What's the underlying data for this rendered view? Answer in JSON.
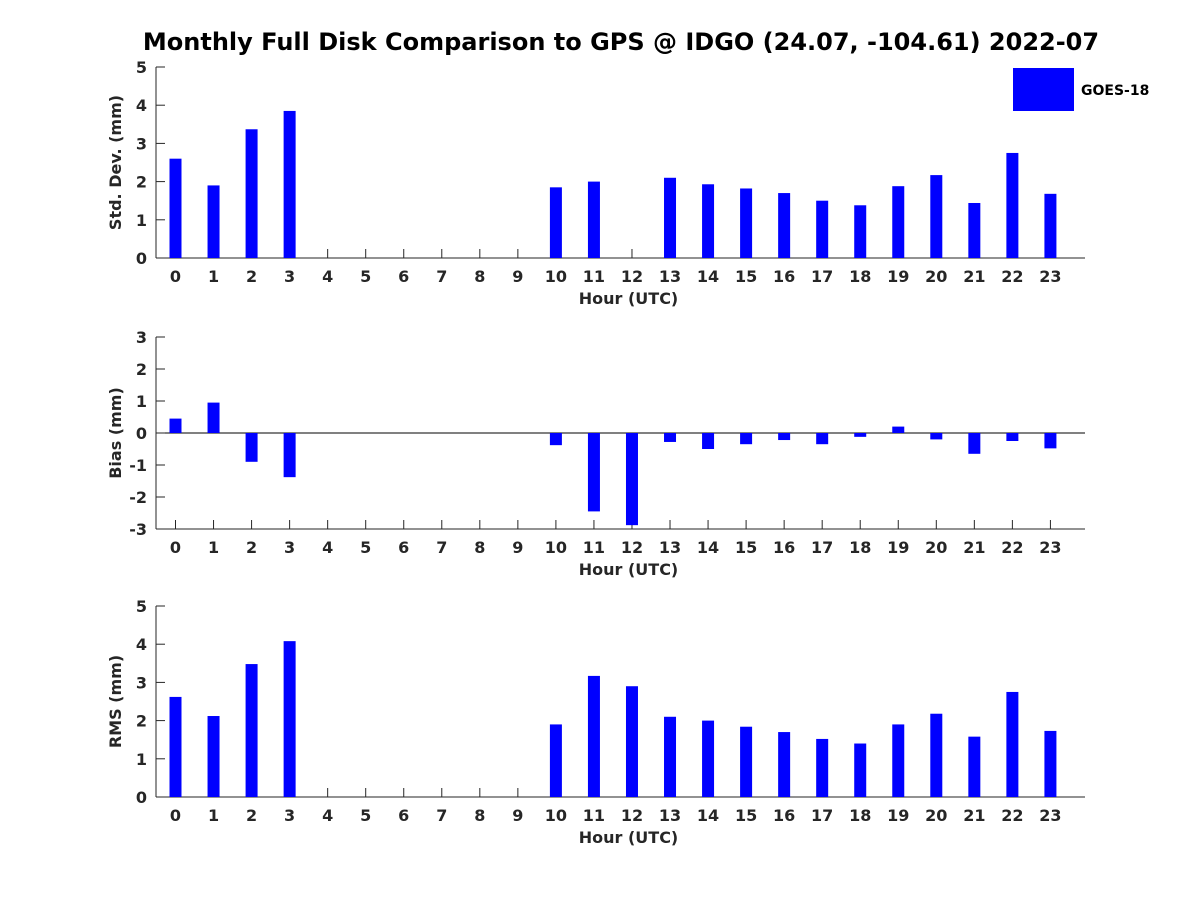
{
  "title": "Monthly Full Disk Comparison to GPS @ IDGO (24.07, -104.61) 2022-07",
  "colors": {
    "bar": "#0000ff",
    "axis": "#262626"
  },
  "legend": {
    "label": "GOES-18",
    "placement": "top-right"
  },
  "chart_data": [
    {
      "type": "bar",
      "id": "std",
      "categories": [
        "0",
        "1",
        "2",
        "3",
        "4",
        "5",
        "6",
        "7",
        "8",
        "9",
        "10",
        "11",
        "12",
        "13",
        "14",
        "15",
        "16",
        "17",
        "18",
        "19",
        "20",
        "21",
        "22",
        "23"
      ],
      "series": [
        {
          "name": "GOES-18",
          "values": [
            2.6,
            1.9,
            3.37,
            3.85,
            null,
            null,
            null,
            null,
            null,
            null,
            1.85,
            2.0,
            null,
            2.1,
            1.93,
            1.82,
            1.7,
            1.5,
            1.38,
            1.88,
            2.17,
            1.44,
            2.75,
            1.68
          ]
        }
      ],
      "xlabel": "Hour (UTC)",
      "ylabel": "Std. Dev. (mm)",
      "ylim": [
        0,
        5
      ],
      "yticks": [
        0,
        1,
        2,
        3,
        4,
        5
      ],
      "grid": false
    },
    {
      "type": "bar",
      "id": "bias",
      "categories": [
        "0",
        "1",
        "2",
        "3",
        "4",
        "5",
        "6",
        "7",
        "8",
        "9",
        "10",
        "11",
        "12",
        "13",
        "14",
        "15",
        "16",
        "17",
        "18",
        "19",
        "20",
        "21",
        "22",
        "23"
      ],
      "series": [
        {
          "name": "GOES-18",
          "values": [
            0.45,
            0.95,
            -0.9,
            -1.38,
            null,
            null,
            null,
            null,
            null,
            null,
            -0.38,
            -2.45,
            -2.88,
            -0.28,
            -0.5,
            -0.35,
            -0.22,
            -0.35,
            -0.12,
            0.2,
            -0.2,
            -0.65,
            -0.25,
            -0.48
          ]
        }
      ],
      "xlabel": "Hour (UTC)",
      "ylabel": "Bias (mm)",
      "ylim": [
        -3,
        3
      ],
      "yticks": [
        -3,
        -2,
        -1,
        0,
        1,
        2,
        3
      ],
      "zero_line": true,
      "grid": false
    },
    {
      "type": "bar",
      "id": "rms",
      "categories": [
        "0",
        "1",
        "2",
        "3",
        "4",
        "5",
        "6",
        "7",
        "8",
        "9",
        "10",
        "11",
        "12",
        "13",
        "14",
        "15",
        "16",
        "17",
        "18",
        "19",
        "20",
        "21",
        "22",
        "23"
      ],
      "series": [
        {
          "name": "GOES-18",
          "values": [
            2.62,
            2.12,
            3.48,
            4.08,
            null,
            null,
            null,
            null,
            null,
            null,
            1.9,
            3.17,
            2.9,
            2.1,
            2.0,
            1.84,
            1.7,
            1.52,
            1.4,
            1.9,
            2.18,
            1.58,
            2.75,
            1.73
          ]
        }
      ],
      "xlabel": "Hour (UTC)",
      "ylabel": "RMS (mm)",
      "ylim": [
        0,
        5
      ],
      "yticks": [
        0,
        1,
        2,
        3,
        4,
        5
      ],
      "grid": false
    }
  ]
}
